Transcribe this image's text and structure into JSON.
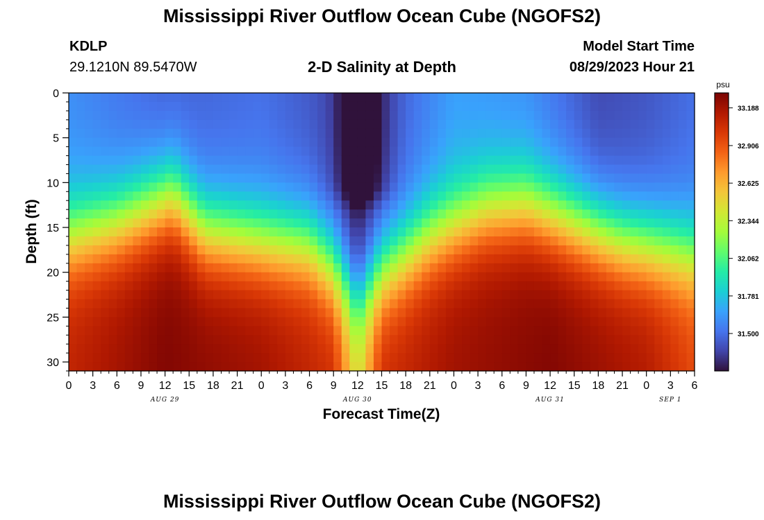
{
  "header": {
    "title": "Mississippi River Outflow Ocean Cube (NGOFS2)",
    "station_id": "KDLP",
    "coordinates": "29.1210N  89.5470W",
    "subtitle": "2-D Salinity at Depth",
    "model_start_label": "Model Start Time",
    "model_start_value": "08/29/2023 Hour 21"
  },
  "footer": {
    "title": "Mississippi River Outflow Ocean Cube (NGOFS2)"
  },
  "chart_data": {
    "type": "heatmap",
    "title": "2-D Salinity at Depth",
    "xlabel": "Forecast Time(Z)",
    "ylabel": "Depth (ft)",
    "xlim": [
      0,
      78
    ],
    "ylim": [
      31,
      0
    ],
    "x_tick_labels": [
      "0",
      "3",
      "6",
      "9",
      "12",
      "15",
      "18",
      "21",
      "0",
      "3",
      "6",
      "9",
      "12",
      "15",
      "18",
      "21",
      "0",
      "3",
      "6",
      "9",
      "12",
      "15",
      "18",
      "21",
      "0",
      "3",
      "6"
    ],
    "y_ticks": [
      0,
      5,
      10,
      15,
      20,
      25,
      30
    ],
    "day_labels": [
      {
        "text": "AUG 29",
        "x": 12
      },
      {
        "text": "AUG 30",
        "x": 36
      },
      {
        "text": "AUG 31",
        "x": 60
      },
      {
        "text": "SEP 1",
        "x": 75
      }
    ],
    "colorbar": {
      "unit": "psu",
      "min": 31.22,
      "max": 33.3,
      "tick_values": [
        33.188,
        32.906,
        32.625,
        32.344,
        32.062,
        31.781,
        31.5
      ],
      "tick_labels": [
        "33.188",
        "32.906",
        "32.625",
        "32.344",
        "32.062",
        "31.781",
        "31.500"
      ],
      "colors": [
        "#30123b",
        "#4145ab",
        "#4675ed",
        "#39a2fc",
        "#1bcfd4",
        "#24eca6",
        "#61fc6c",
        "#a4fc3b",
        "#d1e834",
        "#f3c63a",
        "#fe9b2d",
        "#f36315",
        "#d93806",
        "#b11901",
        "#7a0403"
      ]
    },
    "halocline_depth_ft": [
      {
        "x": 0,
        "depth": 16.0
      },
      {
        "x": 6,
        "depth": 14.5
      },
      {
        "x": 13,
        "depth": 11.5
      },
      {
        "x": 17,
        "depth": 15.5
      },
      {
        "x": 24,
        "depth": 16.5
      },
      {
        "x": 30,
        "depth": 17.0
      },
      {
        "x": 33,
        "depth": 19.5
      },
      {
        "x": 36,
        "depth": 23.0
      },
      {
        "x": 39,
        "depth": 20.0
      },
      {
        "x": 45,
        "depth": 16.0
      },
      {
        "x": 52,
        "depth": 13.0
      },
      {
        "x": 57,
        "depth": 12.5
      },
      {
        "x": 63,
        "depth": 14.5
      },
      {
        "x": 69,
        "depth": 16.5
      },
      {
        "x": 78,
        "depth": 18.0
      }
    ],
    "surface_salinity": [
      {
        "x": 0,
        "value": 31.6
      },
      {
        "x": 12,
        "value": 31.45
      },
      {
        "x": 24,
        "value": 31.5
      },
      {
        "x": 33,
        "value": 31.4
      },
      {
        "x": 36,
        "value": 31.22
      },
      {
        "x": 39,
        "value": 31.4
      },
      {
        "x": 48,
        "value": 31.65
      },
      {
        "x": 57,
        "value": 31.6
      },
      {
        "x": 66,
        "value": 31.38
      },
      {
        "x": 72,
        "value": 31.42
      },
      {
        "x": 78,
        "value": 31.5
      }
    ],
    "bottom_salinity": [
      {
        "x": 0,
        "value": 33.1
      },
      {
        "x": 12,
        "value": 33.28
      },
      {
        "x": 24,
        "value": 33.2
      },
      {
        "x": 33,
        "value": 33.05
      },
      {
        "x": 36,
        "value": 32.45
      },
      {
        "x": 39,
        "value": 33.05
      },
      {
        "x": 48,
        "value": 33.2
      },
      {
        "x": 60,
        "value": 33.28
      },
      {
        "x": 72,
        "value": 33.15
      },
      {
        "x": 78,
        "value": 32.95
      }
    ],
    "plume_core": {
      "x_center": 36.5,
      "x_half_width": 3.2,
      "depth_bottom": 10.0
    }
  }
}
